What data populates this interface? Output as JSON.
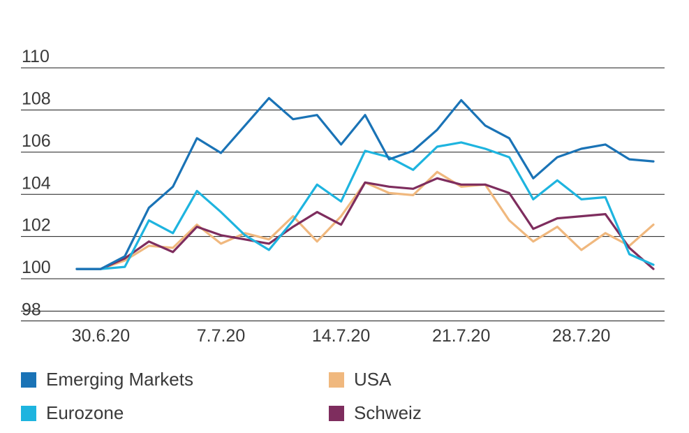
{
  "chart_data": {
    "type": "line",
    "title": "",
    "xlabel": "",
    "ylabel": "",
    "ylim": [
      97.9,
      110.5
    ],
    "yticks": [
      98,
      100,
      102,
      104,
      106,
      108,
      110
    ],
    "x": [
      "29.6.20",
      "30.6.20",
      "1.7.20",
      "2.7.20",
      "3.7.20",
      "6.7.20",
      "7.7.20",
      "8.7.20",
      "9.7.20",
      "10.7.20",
      "13.7.20",
      "14.7.20",
      "15.7.20",
      "16.7.20",
      "17.7.20",
      "20.7.20",
      "21.7.20",
      "22.7.20",
      "23.7.20",
      "24.7.20",
      "27.7.20",
      "28.7.20",
      "29.7.20",
      "30.7.20",
      "31.7.20"
    ],
    "xtick_labels": [
      "30.6.20",
      "7.7.20",
      "14.7.20",
      "21.7.20",
      "28.7.20"
    ],
    "grid": true,
    "legend_position": "bottom",
    "series": [
      {
        "name": "Emerging Markets",
        "color": "#1a73b6",
        "points": [
          [
            "29.6.20",
            99.9
          ],
          [
            "30.6.20",
            99.9
          ],
          [
            "1.7.20",
            100.5
          ],
          [
            "2.7.20",
            102.8
          ],
          [
            "3.7.20",
            103.8
          ],
          [
            "6.7.20",
            106.1
          ],
          [
            "7.7.20",
            105.4
          ],
          [
            "8.7.20",
            106.7
          ],
          [
            "9.7.20",
            108.0
          ],
          [
            "10.7.20",
            107.0
          ],
          [
            "13.7.20",
            107.2
          ],
          [
            "14.7.20",
            105.8
          ],
          [
            "15.7.20",
            107.2
          ],
          [
            "16.7.20",
            105.1
          ],
          [
            "17.7.20",
            105.5
          ],
          [
            "20.7.20",
            106.5
          ],
          [
            "21.7.20",
            107.9
          ],
          [
            "22.7.20",
            106.7
          ],
          [
            "23.7.20",
            106.1
          ],
          [
            "24.7.20",
            104.2
          ],
          [
            "27.7.20",
            105.2
          ],
          [
            "28.7.20",
            105.6
          ],
          [
            "29.7.20",
            105.8
          ],
          [
            "30.7.20",
            105.1
          ],
          [
            "31.7.20",
            105.0
          ]
        ]
      },
      {
        "name": "Eurozone",
        "color": "#1eb4df",
        "points": [
          [
            "29.6.20",
            99.9
          ],
          [
            "30.6.20",
            99.9
          ],
          [
            "1.7.20",
            100.0
          ],
          [
            "2.7.20",
            102.2
          ],
          [
            "3.7.20",
            101.6
          ],
          [
            "6.7.20",
            103.6
          ],
          [
            "7.7.20",
            102.6
          ],
          [
            "8.7.20",
            101.5
          ],
          [
            "9.7.20",
            100.8
          ],
          [
            "10.7.20",
            102.2
          ],
          [
            "13.7.20",
            103.9
          ],
          [
            "14.7.20",
            103.1
          ],
          [
            "15.7.20",
            105.5
          ],
          [
            "16.7.20",
            105.2
          ],
          [
            "17.7.20",
            104.6
          ],
          [
            "20.7.20",
            105.7
          ],
          [
            "21.7.20",
            105.9
          ],
          [
            "22.7.20",
            105.6
          ],
          [
            "23.7.20",
            105.2
          ],
          [
            "24.7.20",
            103.2
          ],
          [
            "27.7.20",
            104.1
          ],
          [
            "28.7.20",
            103.2
          ],
          [
            "29.7.20",
            103.3
          ],
          [
            "30.7.20",
            100.6
          ],
          [
            "31.7.20",
            100.1
          ]
        ]
      },
      {
        "name": "USA",
        "color": "#f0b87e",
        "points": [
          [
            "29.6.20",
            99.9
          ],
          [
            "30.6.20",
            99.9
          ],
          [
            "1.7.20",
            100.3
          ],
          [
            "2.7.20",
            101.0
          ],
          [
            "3.7.20",
            100.9
          ],
          [
            "6.7.20",
            102.0
          ],
          [
            "7.7.20",
            101.1
          ],
          [
            "8.7.20",
            101.6
          ],
          [
            "9.7.20",
            101.3
          ],
          [
            "10.7.20",
            102.4
          ],
          [
            "13.7.20",
            101.2
          ],
          [
            "14.7.20",
            102.4
          ],
          [
            "15.7.20",
            104.0
          ],
          [
            "16.7.20",
            103.5
          ],
          [
            "17.7.20",
            103.4
          ],
          [
            "20.7.20",
            104.5
          ],
          [
            "21.7.20",
            103.8
          ],
          [
            "22.7.20",
            103.9
          ],
          [
            "23.7.20",
            102.2
          ],
          [
            "24.7.20",
            101.2
          ],
          [
            "27.7.20",
            101.9
          ],
          [
            "28.7.20",
            100.8
          ],
          [
            "29.7.20",
            101.6
          ],
          [
            "30.7.20",
            101.0
          ],
          [
            "31.7.20",
            102.0
          ]
        ]
      },
      {
        "name": "Schweiz",
        "color": "#7e2d5e",
        "points": [
          [
            "29.6.20",
            99.9
          ],
          [
            "30.6.20",
            99.9
          ],
          [
            "1.7.20",
            100.4
          ],
          [
            "2.7.20",
            101.2
          ],
          [
            "3.7.20",
            100.7
          ],
          [
            "6.7.20",
            101.9
          ],
          [
            "7.7.20",
            101.5
          ],
          [
            "8.7.20",
            101.3
          ],
          [
            "9.7.20",
            101.1
          ],
          [
            "10.7.20",
            101.9
          ],
          [
            "13.7.20",
            102.6
          ],
          [
            "14.7.20",
            102.0
          ],
          [
            "15.7.20",
            104.0
          ],
          [
            "16.7.20",
            103.8
          ],
          [
            "17.7.20",
            103.7
          ],
          [
            "20.7.20",
            104.2
          ],
          [
            "21.7.20",
            103.9
          ],
          [
            "22.7.20",
            103.9
          ],
          [
            "23.7.20",
            103.5
          ],
          [
            "24.7.20",
            101.8
          ],
          [
            "27.7.20",
            102.3
          ],
          [
            "28.7.20",
            102.4
          ],
          [
            "29.7.20",
            102.5
          ],
          [
            "30.7.20",
            100.9
          ],
          [
            "31.7.20",
            99.9
          ]
        ]
      }
    ]
  }
}
